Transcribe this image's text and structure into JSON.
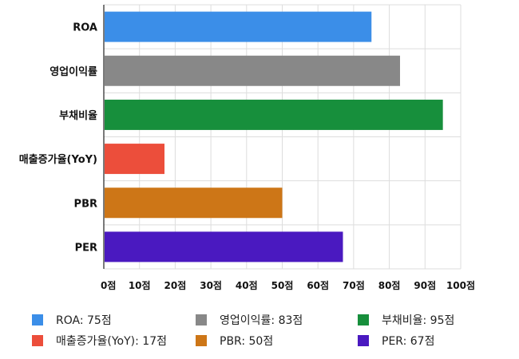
{
  "chart_data": {
    "type": "bar",
    "orientation": "horizontal",
    "categories": [
      "ROA",
      "영업이익률",
      "부채비율",
      "매출증가율(YoY)",
      "PBR",
      "PER"
    ],
    "values": [
      75,
      83,
      95,
      17,
      50,
      67
    ],
    "colors": [
      "#3b8ee8",
      "#888888",
      "#178f3c",
      "#ec4e3b",
      "#cd7617",
      "#4a19c0"
    ],
    "xlim": [
      0,
      100
    ],
    "xticks": [
      0,
      10,
      20,
      30,
      40,
      50,
      60,
      70,
      80,
      90,
      100
    ],
    "tick_suffix": "점",
    "grid": true,
    "legend_placement": "bottom",
    "legend": [
      {
        "label": "ROA: 75점",
        "color": "#3b8ee8"
      },
      {
        "label": "영업이익률: 83점",
        "color": "#888888"
      },
      {
        "label": "부채비율: 95점",
        "color": "#178f3c"
      },
      {
        "label": "매출증가율(YoY): 17점",
        "color": "#ec4e3b"
      },
      {
        "label": "PBR: 50점",
        "color": "#cd7617"
      },
      {
        "label": "PER: 67점",
        "color": "#4a19c0"
      }
    ]
  }
}
